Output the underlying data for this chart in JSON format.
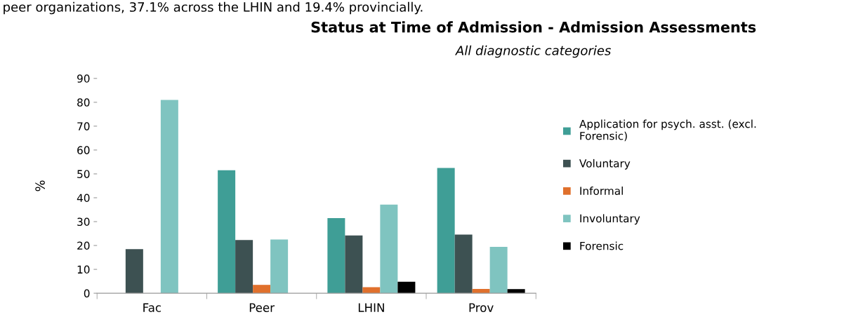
{
  "chart_data": {
    "type": "bar",
    "title": "Status at Time of Admission - Admission Assessments",
    "subtitle": "All diagnostic categories",
    "ylabel": "%",
    "annotations": [
      "peer organizations, 37.1% across the LHIN and 19.4% provincially."
    ],
    "categories": [
      "Fac",
      "Peer",
      "LHIN",
      "Prov"
    ],
    "series": [
      {
        "name": "Application for psych. asst. (excl.\nForensic)",
        "color": "#3f9e96",
        "values": [
          0,
          51.5,
          31.5,
          52.5
        ]
      },
      {
        "name": "Voluntary",
        "color": "#3d5152",
        "values": [
          18.5,
          22.3,
          24.2,
          24.6
        ]
      },
      {
        "name": "Informal",
        "color": "#e0702c",
        "values": [
          0,
          3.5,
          2.5,
          1.8
        ]
      },
      {
        "name": "Involuntary",
        "color": "#7fc4c0",
        "values": [
          81,
          22.5,
          37.1,
          19.4
        ]
      },
      {
        "name": "Forensic",
        "color": "#000000",
        "values": [
          0,
          0,
          4.8,
          1.7
        ]
      }
    ],
    "ylim": [
      0,
      90
    ],
    "yticks": [
      0,
      10,
      20,
      30,
      40,
      50,
      60,
      70,
      80,
      90
    ],
    "grid": false,
    "legend": "right"
  }
}
